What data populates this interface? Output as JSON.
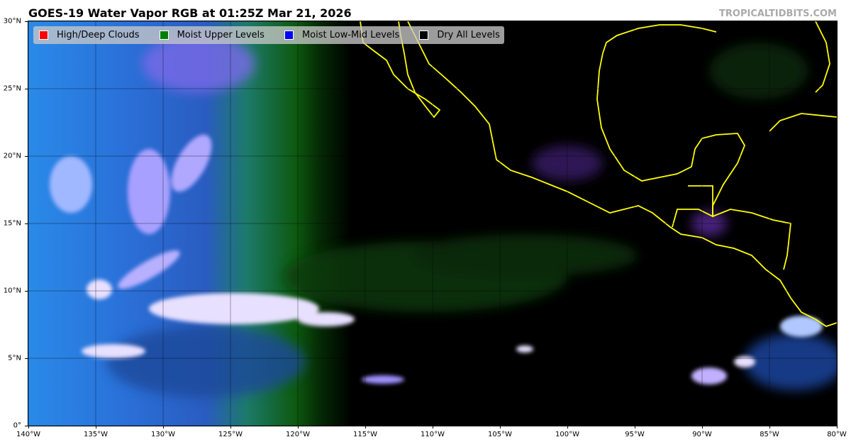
{
  "title": "GOES-19 Water Vapor RGB at 01:25Z Mar 21, 2026",
  "credit": "TROPICALTIDBITS.COM",
  "legend": [
    {
      "label": "High/Deep Clouds",
      "color": "#ff0000"
    },
    {
      "label": "Moist Upper Levels",
      "color": "#008000"
    },
    {
      "label": "Moist Low-Mid Levels",
      "color": "#0000ff"
    },
    {
      "label": "Dry All Levels",
      "color": "#000000"
    }
  ],
  "map": {
    "lon_range": [
      -140,
      -80
    ],
    "lat_range": [
      0,
      30
    ],
    "coastline_color": "#ffff00",
    "x_ticks": [
      "140°W",
      "135°W",
      "130°W",
      "125°W",
      "120°W",
      "115°W",
      "110°W",
      "105°W",
      "100°W",
      "95°W",
      "90°W",
      "85°W",
      "80°W"
    ],
    "y_ticks": [
      "0°",
      "5°N",
      "10°N",
      "15°N",
      "20°N",
      "25°N",
      "30°N"
    ]
  }
}
